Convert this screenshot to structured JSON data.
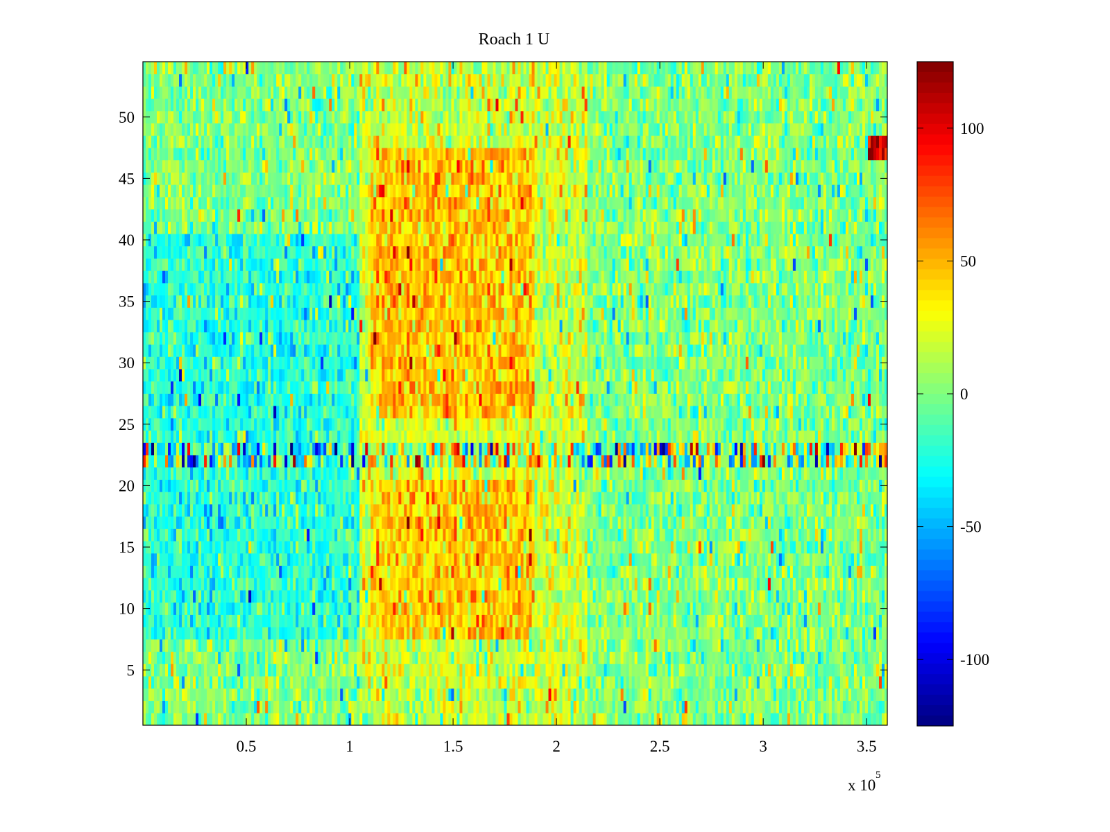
{
  "chart_data": {
    "type": "heatmap",
    "title": "Roach 1 U",
    "xlabel": "",
    "ylabel": "",
    "x_ticks": [
      "0.5",
      "1",
      "1.5",
      "2",
      "2.5",
      "3",
      "3.5"
    ],
    "x_tick_values": [
      0.5,
      1.0,
      1.5,
      2.0,
      2.5,
      3.0,
      3.5
    ],
    "x_exponent_base": "x 10",
    "x_exponent_power": "5",
    "x_range": [
      0,
      3.6
    ],
    "y_ticks": [
      "5",
      "10",
      "15",
      "20",
      "25",
      "30",
      "35",
      "40",
      "45",
      "50"
    ],
    "y_tick_values": [
      5,
      10,
      15,
      20,
      25,
      30,
      35,
      40,
      45,
      50
    ],
    "y_range": [
      0.5,
      54.5
    ],
    "rows": 54,
    "colorbar": {
      "colormap": "jet",
      "range": [
        -125,
        125
      ],
      "ticks": [
        "-100",
        "-50",
        "0",
        "50",
        "100"
      ],
      "tick_values": [
        -100,
        -50,
        0,
        50,
        100
      ]
    },
    "features": {
      "baseline_level": 0,
      "low_region": {
        "x_range": [
          0.0,
          1.05
        ],
        "y_range": [
          8,
          40
        ],
        "level": -22
      },
      "high_regions": [
        {
          "x_range": [
            1.1,
            1.9
          ],
          "y_range": [
            26,
            47
          ],
          "level": 45
        },
        {
          "x_range": [
            1.1,
            1.9
          ],
          "y_range": [
            8,
            20
          ],
          "level": 45
        }
      ],
      "noisy_band_rows": [
        22,
        23
      ],
      "hot_block": {
        "x_range": [
          3.5,
          3.6
        ],
        "y_range": [
          47,
          48
        ],
        "level": 110
      }
    }
  }
}
